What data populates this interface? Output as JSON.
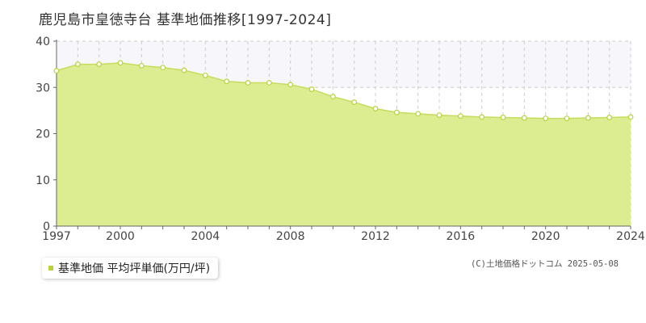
{
  "chart_data": {
    "type": "area",
    "title": "鹿児島市皇徳寺台 基準地価推移[1997-2024]",
    "x": [
      1997,
      1998,
      1999,
      2000,
      2001,
      2002,
      2003,
      2004,
      2005,
      2006,
      2007,
      2008,
      2009,
      2010,
      2011,
      2012,
      2013,
      2014,
      2015,
      2016,
      2017,
      2018,
      2019,
      2020,
      2021,
      2022,
      2023,
      2024
    ],
    "series": [
      {
        "name": "基準地価 平均坪単価(万円/坪)",
        "values": [
          33.6,
          35.0,
          35.0,
          35.3,
          34.7,
          34.3,
          33.7,
          32.6,
          31.3,
          31.0,
          31.0,
          30.6,
          29.6,
          28.0,
          26.8,
          25.4,
          24.6,
          24.3,
          24.0,
          23.8,
          23.6,
          23.5,
          23.4,
          23.3,
          23.3,
          23.4,
          23.5,
          23.6
        ]
      }
    ],
    "x_ticks": [
      "1997",
      "2000",
      "2004",
      "2008",
      "2012",
      "2016",
      "2020",
      "2024"
    ],
    "y_ticks": [
      "0",
      "10",
      "20",
      "30",
      "40"
    ],
    "ylim": [
      0,
      40
    ],
    "xlim": [
      1997,
      2024
    ],
    "grid": true,
    "legend": "bottom-left",
    "colors": {
      "fill": "#dcec91",
      "line": "#c5dc5c",
      "marker": "#b6d43a",
      "grid": "#cccccc",
      "axis": "#666666",
      "band": "#f7f7fb"
    }
  },
  "copyright": "(C)土地価格ドットコム 2025-05-08"
}
